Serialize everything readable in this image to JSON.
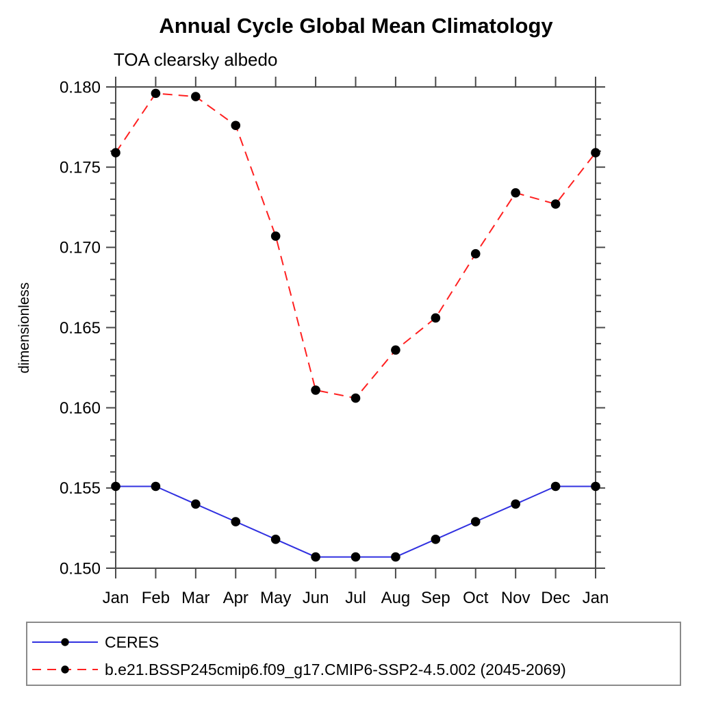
{
  "chart_data": {
    "type": "line",
    "title": "Annual Cycle Global Mean Climatology",
    "subtitle": "TOA clearsky albedo",
    "xlabel": "",
    "ylabel": "dimensionless",
    "categories": [
      "Jan",
      "Feb",
      "Mar",
      "Apr",
      "May",
      "Jun",
      "Jul",
      "Aug",
      "Sep",
      "Oct",
      "Nov",
      "Dec",
      "Jan"
    ],
    "ylim": [
      0.15,
      0.18
    ],
    "y_major_step": 0.005,
    "y_minor_step": 0.001,
    "y_tick_labels": [
      "0.150",
      "0.155",
      "0.160",
      "0.165",
      "0.170",
      "0.175",
      "0.180"
    ],
    "grid": false,
    "legend_position": "bottom-left-box",
    "frame_color": "#4a4a4a",
    "marker_color": "#000000",
    "series": [
      {
        "name": "CERES",
        "color": "#3030e0",
        "style": "solid",
        "marker": "circle",
        "values": [
          0.1551,
          0.1551,
          0.154,
          0.1529,
          0.1518,
          0.1507,
          0.1507,
          0.1507,
          0.1518,
          0.1529,
          0.154,
          0.1551,
          0.1551
        ]
      },
      {
        "name": "b.e21.BSSP245cmip6.f09_g17.CMIP6-SSP2-4.5.002 (2045-2069)",
        "color": "#ff2020",
        "style": "dashed",
        "marker": "circle",
        "values": [
          0.1759,
          0.1796,
          0.1794,
          0.1776,
          0.1707,
          0.1611,
          0.1606,
          0.1636,
          0.1656,
          0.1696,
          0.1734,
          0.1727,
          0.1759
        ]
      }
    ]
  }
}
